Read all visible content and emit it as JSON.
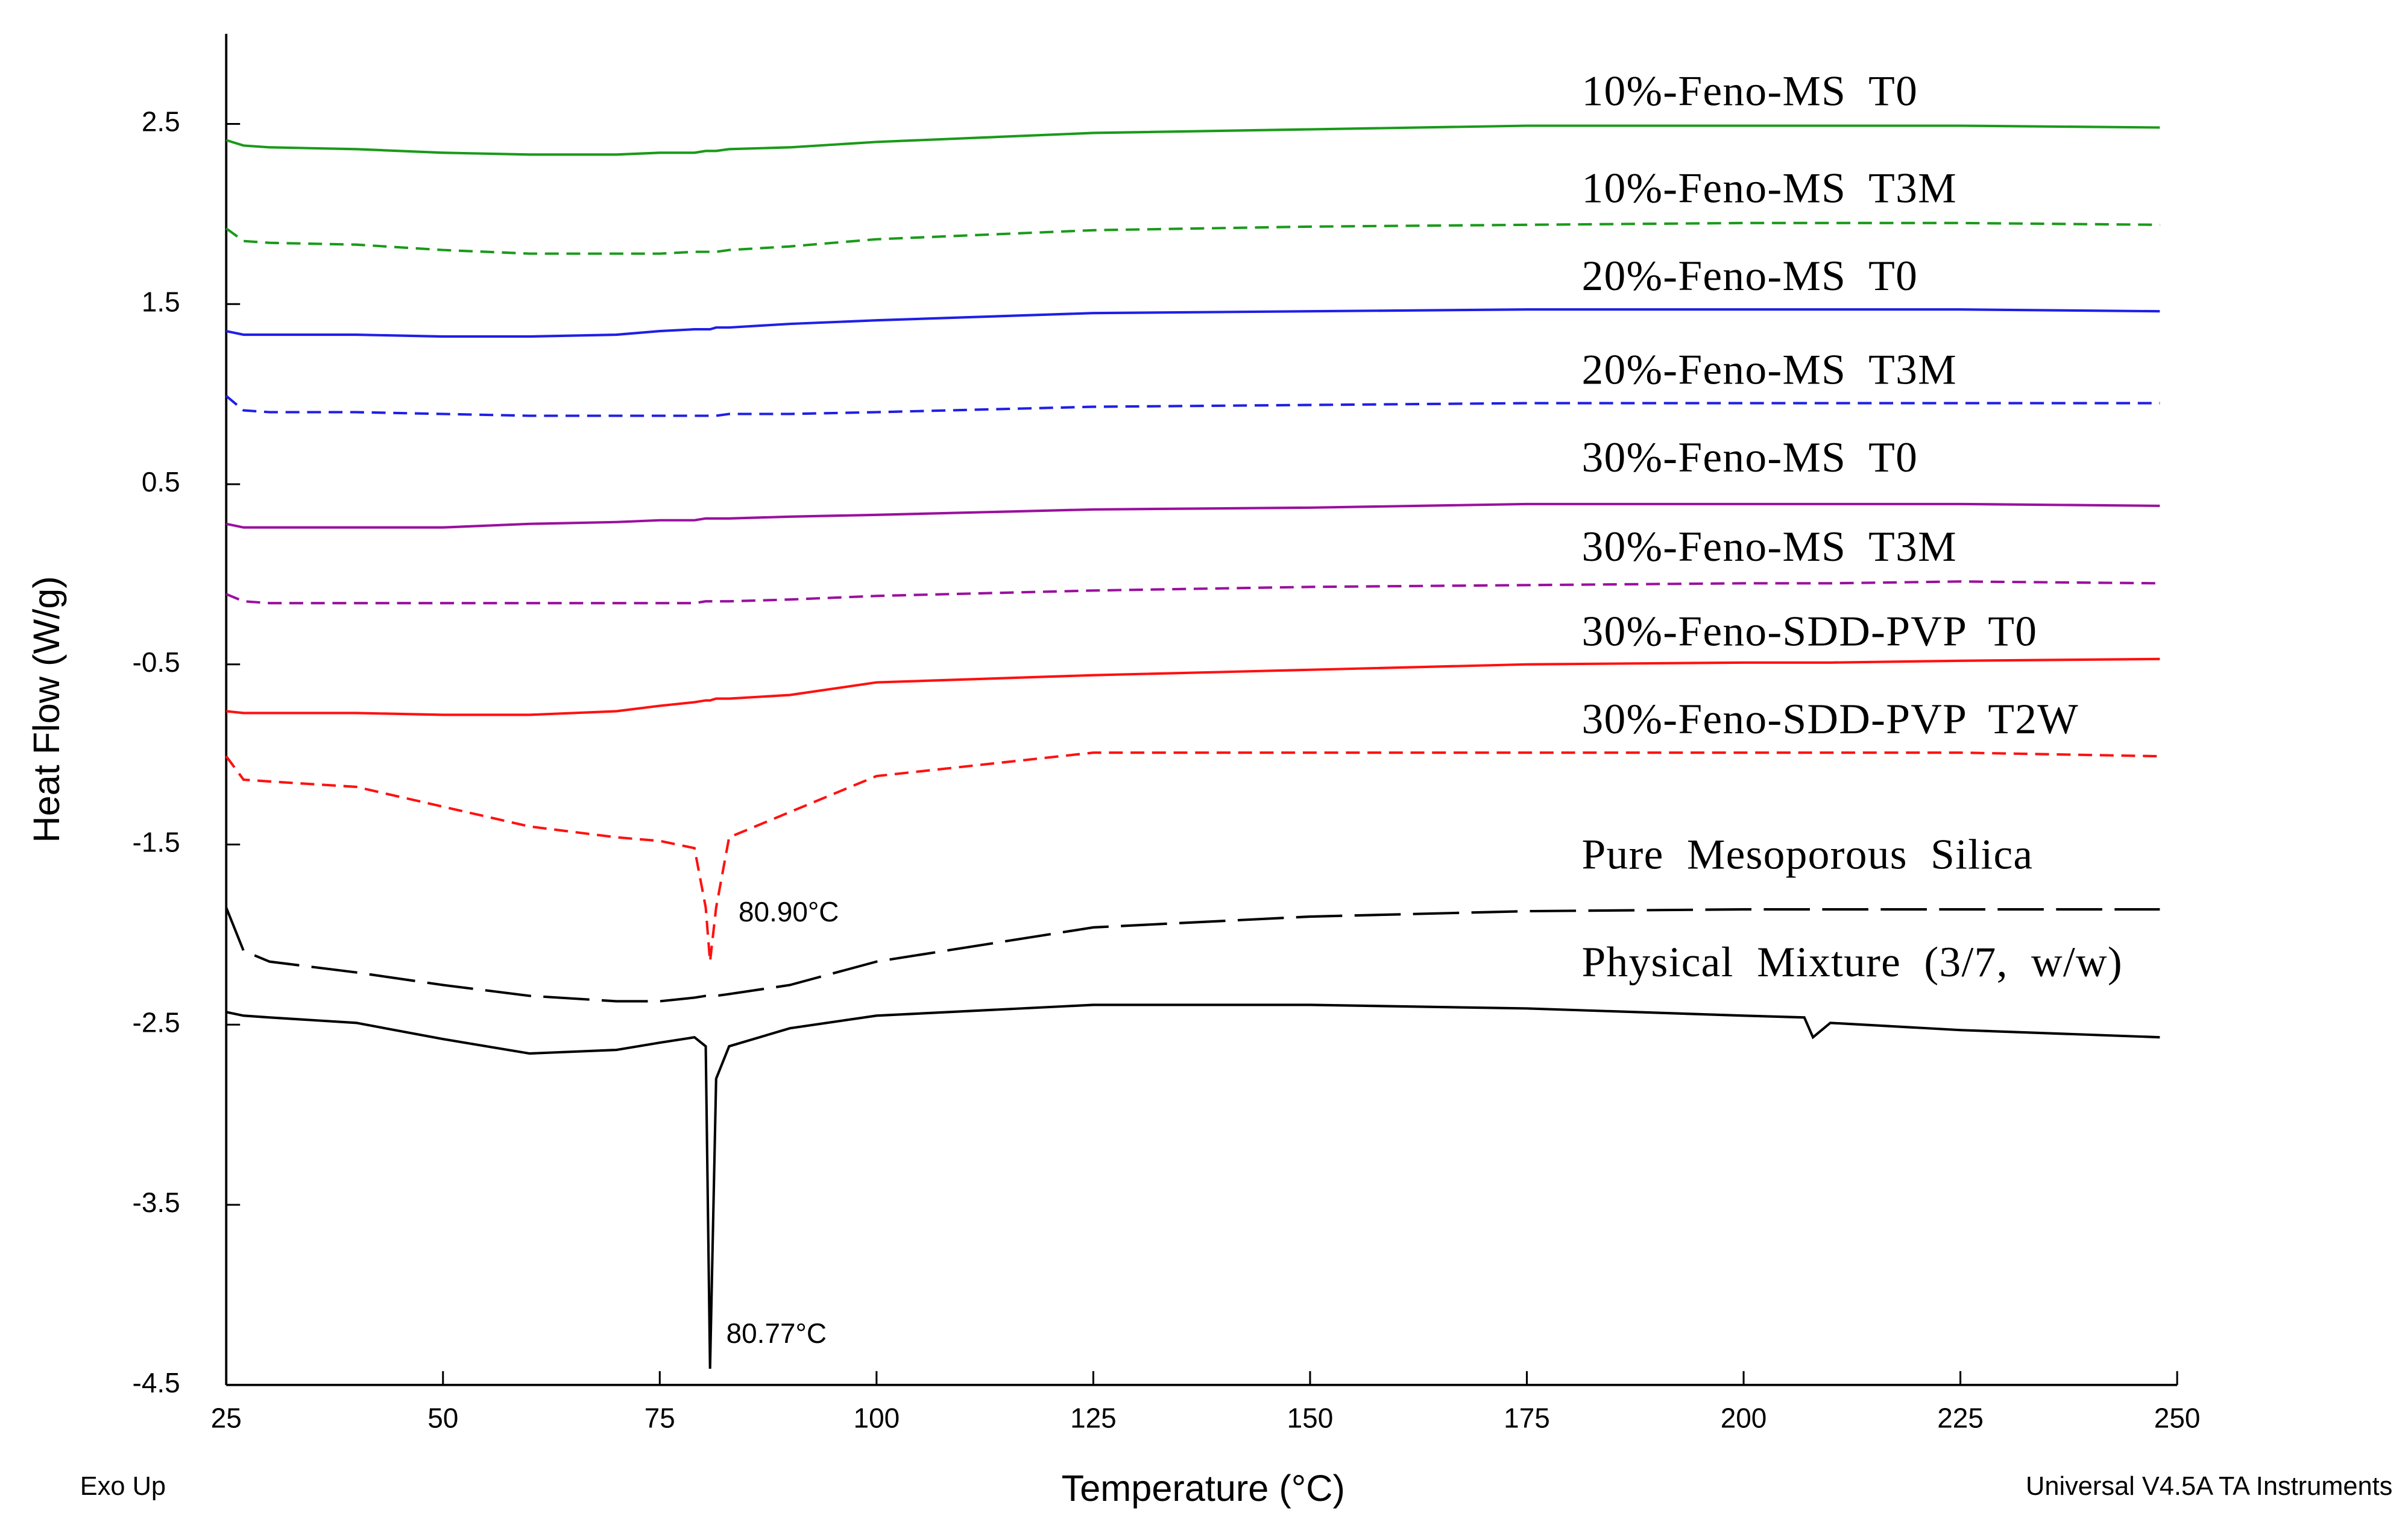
{
  "chart_data": {
    "type": "line",
    "xlabel": "Temperature (°C)",
    "ylabel": "Heat Flow (W/g)",
    "footer_left": "Exo Up",
    "footer_right": "Universal V4.5A TA Instruments",
    "annotations": [
      "80.90°C",
      "80.77°C"
    ],
    "xlim": [
      25,
      250
    ],
    "xticks": [
      25,
      50,
      75,
      100,
      125,
      150,
      175,
      200,
      225,
      250
    ],
    "ylim": [
      -4.5,
      3.0
    ],
    "yticks": [
      -4.5,
      -3.5,
      -2.5,
      -1.5,
      -0.5,
      0.5,
      1.5,
      2.5
    ],
    "x": [
      25,
      27,
      30,
      40,
      50,
      60,
      70,
      75,
      79,
      80.3,
      80.8,
      81.5,
      83,
      90,
      100,
      125,
      150,
      175,
      200,
      207,
      208,
      210,
      225,
      248
    ],
    "series": [
      {
        "name": "10%-Feno-MS  T0",
        "color": "#1a9a1a",
        "style": "solid",
        "values": [
          2.41,
          2.38,
          2.37,
          2.36,
          2.34,
          2.33,
          2.33,
          2.34,
          2.34,
          2.35,
          2.35,
          2.35,
          2.36,
          2.37,
          2.4,
          2.45,
          2.47,
          2.49,
          2.49,
          2.49,
          2.49,
          2.49,
          2.49,
          2.48
        ]
      },
      {
        "name": "10%-Feno-MS  T3M",
        "color": "#1a9a1a",
        "style": "dashed",
        "values": [
          1.92,
          1.85,
          1.84,
          1.83,
          1.8,
          1.78,
          1.78,
          1.78,
          1.79,
          1.79,
          1.79,
          1.79,
          1.8,
          1.82,
          1.86,
          1.91,
          1.93,
          1.94,
          1.95,
          1.95,
          1.95,
          1.95,
          1.95,
          1.94
        ]
      },
      {
        "name": "20%-Feno-MS  T0",
        "color": "#1f1fe6",
        "style": "solid",
        "values": [
          1.35,
          1.33,
          1.33,
          1.33,
          1.32,
          1.32,
          1.33,
          1.35,
          1.36,
          1.36,
          1.36,
          1.37,
          1.37,
          1.39,
          1.41,
          1.45,
          1.46,
          1.47,
          1.47,
          1.47,
          1.47,
          1.47,
          1.47,
          1.46
        ]
      },
      {
        "name": "20%-Feno-MS  T3M",
        "color": "#1f1fe6",
        "style": "dashed",
        "values": [
          0.99,
          0.91,
          0.9,
          0.9,
          0.89,
          0.88,
          0.88,
          0.88,
          0.88,
          0.88,
          0.88,
          0.88,
          0.89,
          0.89,
          0.9,
          0.93,
          0.94,
          0.95,
          0.95,
          0.95,
          0.95,
          0.95,
          0.95,
          0.95
        ]
      },
      {
        "name": "30%-Feno-MS  T0",
        "color": "#9a109e",
        "style": "solid",
        "values": [
          0.28,
          0.26,
          0.26,
          0.26,
          0.26,
          0.28,
          0.29,
          0.3,
          0.3,
          0.31,
          0.31,
          0.31,
          0.31,
          0.32,
          0.33,
          0.36,
          0.37,
          0.39,
          0.39,
          0.39,
          0.39,
          0.39,
          0.39,
          0.38
        ]
      },
      {
        "name": "30%-Feno-MS  T3M",
        "color": "#9a109e",
        "style": "dashed",
        "values": [
          -0.11,
          -0.15,
          -0.16,
          -0.16,
          -0.16,
          -0.16,
          -0.16,
          -0.16,
          -0.16,
          -0.15,
          -0.15,
          -0.15,
          -0.15,
          -0.14,
          -0.12,
          -0.09,
          -0.07,
          -0.06,
          -0.05,
          -0.05,
          -0.05,
          -0.05,
          -0.04,
          -0.05
        ]
      },
      {
        "name": "30%-Feno-SDD-PVP  T0",
        "color": "#ff1010",
        "style": "solid",
        "values": [
          -0.76,
          -0.77,
          -0.77,
          -0.77,
          -0.78,
          -0.78,
          -0.76,
          -0.73,
          -0.71,
          -0.7,
          -0.7,
          -0.69,
          -0.69,
          -0.67,
          -0.6,
          -0.56,
          -0.53,
          -0.5,
          -0.49,
          -0.49,
          -0.49,
          -0.49,
          -0.48,
          -0.47
        ]
      },
      {
        "name": "30%-Feno-SDD-PVP  T2W",
        "color": "#ff1010",
        "style": "dashed",
        "values": [
          -1.01,
          -1.14,
          -1.15,
          -1.18,
          -1.29,
          -1.4,
          -1.46,
          -1.48,
          -1.52,
          -1.85,
          -2.15,
          -1.85,
          -1.46,
          -1.32,
          -1.12,
          -0.99,
          -0.99,
          -0.99,
          -0.99,
          -0.99,
          -0.99,
          -0.99,
          -0.99,
          -1.01
        ]
      },
      {
        "name": "Pure  Mesoporous  Silica",
        "color": "#000000",
        "style": "long-dashed",
        "values": [
          -1.85,
          -2.09,
          -2.15,
          -2.21,
          -2.28,
          -2.34,
          -2.37,
          -2.37,
          -2.35,
          -2.34,
          -2.34,
          -2.34,
          -2.33,
          -2.28,
          -2.15,
          -1.96,
          -1.9,
          -1.87,
          -1.86,
          -1.86,
          -1.86,
          -1.86,
          -1.86,
          -1.86
        ]
      },
      {
        "name": "Physical  Mixture  (3/7,  w/w)",
        "color": "#000000",
        "style": "solid",
        "values": [
          -2.43,
          -2.45,
          -2.46,
          -2.49,
          -2.58,
          -2.66,
          -2.64,
          -2.6,
          -2.57,
          -2.62,
          -4.41,
          -2.8,
          -2.62,
          -2.52,
          -2.45,
          -2.39,
          -2.39,
          -2.41,
          -2.45,
          -2.46,
          -2.57,
          -2.49,
          -2.53,
          -2.57
        ]
      }
    ]
  }
}
